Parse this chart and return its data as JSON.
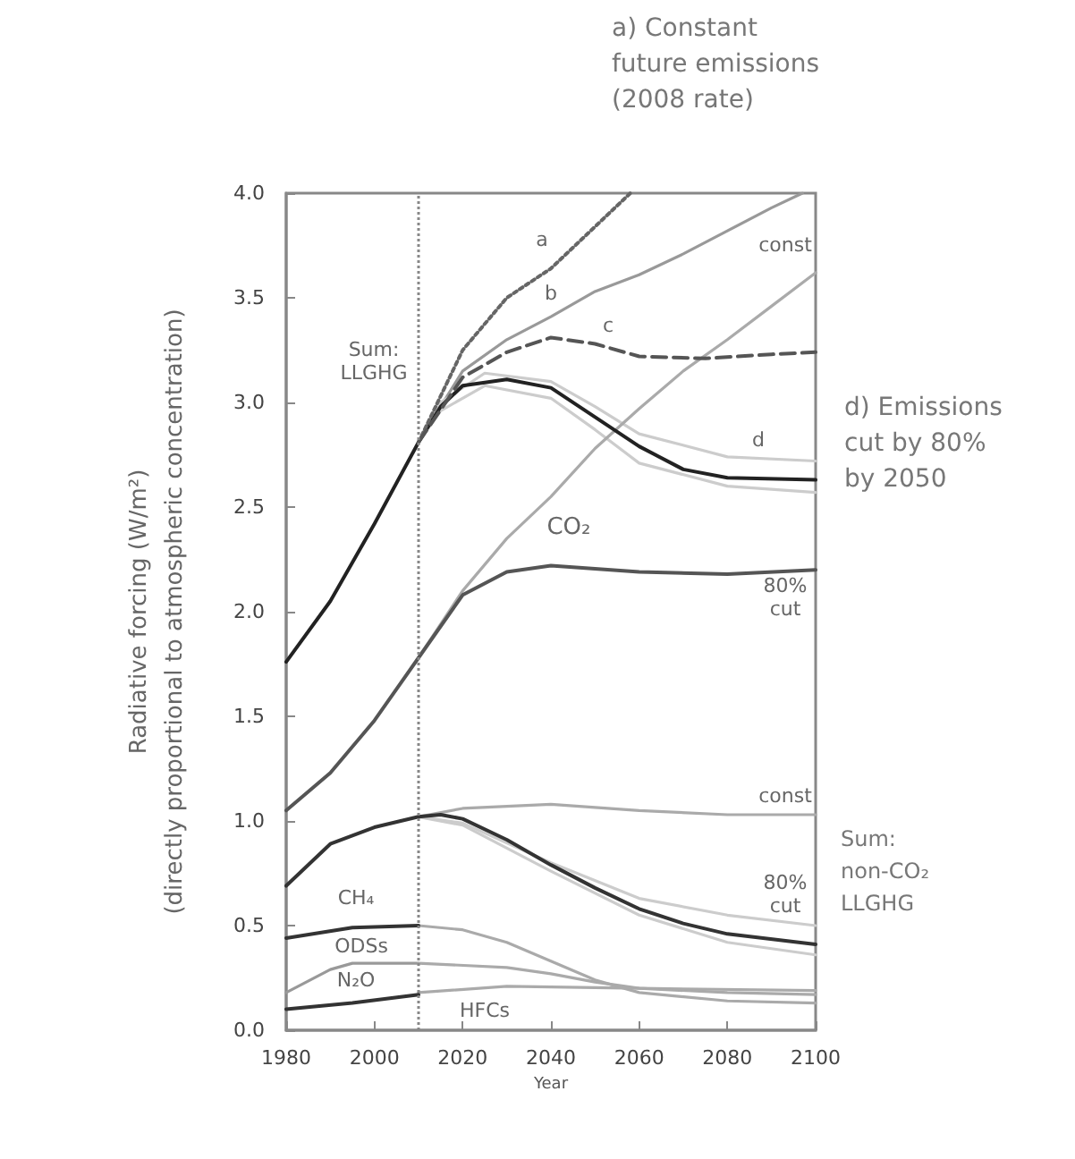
{
  "chart_data": {
    "type": "line",
    "xlabel": "Year",
    "ylabel": "Radiative forcing (W/m²)\n(directly proportional to atmospheric concentration)",
    "xlim": [
      1980,
      2100
    ],
    "xticks": [
      1980,
      2000,
      2020,
      2040,
      2060,
      2080,
      2100
    ],
    "ylim": [
      0,
      4
    ],
    "yticks": [
      {
        "value": 0,
        "label": "0.0"
      },
      0.5,
      {
        "value": 1,
        "label": "1.0"
      },
      1.5,
      {
        "value": 2,
        "label": "2.0"
      },
      2.5,
      {
        "value": 3,
        "label": "3.0"
      },
      3.5,
      {
        "value": 4,
        "label": "4.0"
      }
    ],
    "grid": false,
    "marker": "none",
    "line_style": "solid",
    "series": [
      {
        "color": "#222222",
        "x": [
          1980,
          1990,
          2000,
          2010,
          2015,
          2020,
          2030,
          2040,
          2050,
          2060,
          2070,
          2080,
          2100
        ],
        "values": [
          1.76,
          2.05,
          2.42,
          2.81,
          2.98,
          3.08,
          3.11,
          3.07,
          2.93,
          2.79,
          2.68,
          2.64,
          2.63
        ]
      },
      {
        "color": "#666666",
        "line_style": "dotted",
        "x": [
          2010,
          2020,
          2030,
          2040,
          2050,
          2058
        ],
        "values": [
          2.81,
          3.25,
          3.5,
          3.64,
          3.84,
          4.0
        ]
      },
      {
        "color": "#999999",
        "x": [
          2010,
          2020,
          2030,
          2040,
          2050,
          2060,
          2070,
          2080,
          2090,
          2097
        ],
        "values": [
          2.81,
          3.15,
          3.3,
          3.41,
          3.53,
          3.61,
          3.71,
          3.82,
          3.93,
          4.0
        ]
      },
      {
        "color": "#555555",
        "line_style": "dashed",
        "x": [
          2010,
          2020,
          2030,
          2040,
          2050,
          2060,
          2075,
          2090,
          2100
        ],
        "values": [
          2.81,
          3.12,
          3.24,
          3.31,
          3.28,
          3.22,
          3.21,
          3.23,
          3.24
        ]
      },
      {
        "color": "#cccccc",
        "x": [
          2010,
          2015,
          2025,
          2040,
          2050,
          2060,
          2080,
          2100
        ],
        "values": [
          2.81,
          3.0,
          3.14,
          3.1,
          2.98,
          2.85,
          2.74,
          2.72
        ]
      },
      {
        "color": "#cccccc",
        "x": [
          2010,
          2015,
          2025,
          2040,
          2050,
          2060,
          2080,
          2100
        ],
        "values": [
          2.81,
          2.96,
          3.08,
          3.02,
          2.87,
          2.71,
          2.6,
          2.57
        ]
      },
      {
        "color": "#aaaaaa",
        "x": [
          2010,
          2020,
          2030,
          2040,
          2050,
          2060,
          2070,
          2080,
          2090,
          2100
        ],
        "values": [
          1.78,
          2.1,
          2.35,
          2.55,
          2.78,
          2.97,
          3.15,
          3.3,
          3.46,
          3.62
        ]
      },
      {
        "color": "#555555",
        "x": [
          1980,
          1990,
          2000,
          2010,
          2020,
          2030,
          2040,
          2060,
          2080,
          2100
        ],
        "values": [
          1.05,
          1.23,
          1.48,
          1.78,
          2.08,
          2.19,
          2.22,
          2.19,
          2.18,
          2.2
        ]
      },
      {
        "color": "#aaaaaa",
        "x": [
          2010,
          2020,
          2040,
          2060,
          2080,
          2100
        ],
        "values": [
          1.02,
          1.06,
          1.08,
          1.05,
          1.03,
          1.03
        ]
      },
      {
        "color": "#cccccc",
        "x": [
          2010,
          2020,
          2040,
          2060,
          2080,
          2100
        ],
        "values": [
          1.02,
          0.99,
          0.8,
          0.63,
          0.55,
          0.5
        ]
      },
      {
        "color": "#cccccc",
        "x": [
          2010,
          2020,
          2040,
          2060,
          2080,
          2100
        ],
        "values": [
          1.02,
          0.98,
          0.76,
          0.55,
          0.42,
          0.36
        ]
      },
      {
        "color": "#333333",
        "x": [
          1980,
          1990,
          2000,
          2010,
          2015,
          2020,
          2030,
          2040,
          2050,
          2060,
          2070,
          2080,
          2100
        ],
        "values": [
          0.69,
          0.89,
          0.97,
          1.02,
          1.03,
          1.01,
          0.91,
          0.79,
          0.68,
          0.58,
          0.51,
          0.46,
          0.41
        ]
      },
      {
        "color": "#333333",
        "x": [
          1980,
          1995,
          2010
        ],
        "values": [
          0.44,
          0.49,
          0.5
        ]
      },
      {
        "color": "#aaaaaa",
        "x": [
          2010,
          2020,
          2030,
          2040,
          2050,
          2060,
          2080,
          2100
        ],
        "values": [
          0.5,
          0.48,
          0.42,
          0.33,
          0.24,
          0.18,
          0.14,
          0.13
        ]
      },
      {
        "color": "#999999",
        "x": [
          1980,
          1990,
          1995,
          2010
        ],
        "values": [
          0.18,
          0.29,
          0.32,
          0.32
        ]
      },
      {
        "color": "#aaaaaa",
        "x": [
          2010,
          2030,
          2040,
          2050,
          2060,
          2080,
          2100
        ],
        "values": [
          0.32,
          0.3,
          0.27,
          0.23,
          0.2,
          0.18,
          0.17
        ]
      },
      {
        "color": "#333333",
        "x": [
          1980,
          1995,
          2010
        ],
        "values": [
          0.1,
          0.13,
          0.17
        ]
      },
      {
        "color": "#aaaaaa",
        "x": [
          2010,
          2030,
          2060,
          2100
        ],
        "values": [
          0.18,
          0.21,
          0.2,
          0.19
        ]
      }
    ],
    "ref_lines": [
      {
        "axis": "x",
        "value": 2010,
        "line_style": "dotted",
        "color": "#888888"
      }
    ],
    "annotations": [
      "a) Constant\nfuture emissions\n(2008 rate)",
      "d) Emissions\ncut by 80%\nby 2050",
      "Sum:\nnon-CO₂\nLLGHG",
      "Sum:\nLLGHG",
      "a",
      "b",
      "c",
      "d",
      "const",
      "CO₂",
      "80%\ncut",
      "const",
      "80%\ncut",
      "CH₄",
      "ODSs",
      "N₂O",
      "HFCs"
    ]
  }
}
